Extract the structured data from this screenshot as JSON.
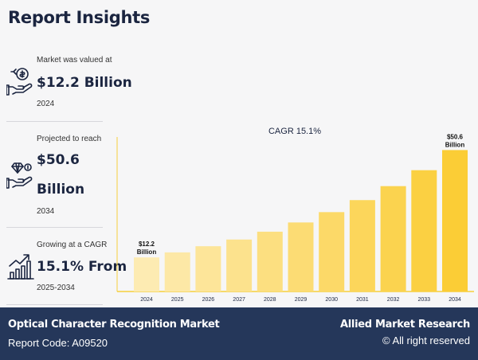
{
  "header": {
    "title": "Report Insights"
  },
  "stats": [
    {
      "label": "Market was valued at",
      "value": "$12.2 Billion",
      "sub": "2024",
      "icon": "money-hand-icon"
    },
    {
      "label": "Projected to reach",
      "value_line1": "$50.6",
      "value_line2": "Billion",
      "sub": "2034",
      "icon": "diamond-hand-icon"
    },
    {
      "label": "Growing at a CAGR",
      "value": "15.1% From",
      "sub": "2025-2034",
      "icon": "growth-chart-icon"
    }
  ],
  "colors": {
    "navy": "#25375a",
    "bar_light": "#fdebb2",
    "bar_dark": "#fbcd36",
    "axis": "#f5cf3c"
  },
  "chart_data": {
    "type": "bar",
    "title": "CAGR 15.1%",
    "categories": [
      "2024",
      "2025",
      "2026",
      "2027",
      "2028",
      "2029",
      "2030",
      "2031",
      "2032",
      "2033",
      "2034"
    ],
    "values": [
      12.2,
      14.0,
      16.2,
      18.6,
      21.4,
      24.7,
      28.4,
      32.7,
      37.7,
      43.4,
      50.6
    ],
    "ylim": [
      0,
      53
    ],
    "xlabel": "",
    "ylabel": "",
    "annotations": [
      {
        "index": 0,
        "line1": "$12.2",
        "line2": "Billion"
      },
      {
        "index": 10,
        "line1": "$50.6",
        "line2": "Billion"
      }
    ]
  },
  "footer": {
    "report_title": "Optical Character Recognition Market",
    "report_code": "Report Code: A09520",
    "brand": "Allied Market Research",
    "rights": "© All right reserved"
  }
}
